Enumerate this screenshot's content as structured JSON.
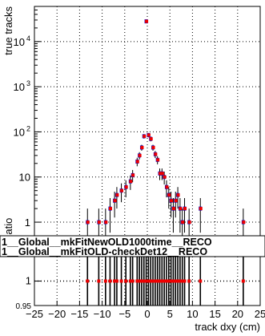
{
  "chart_data": [
    {
      "type": "scatter",
      "panel": "main",
      "ylabel": "true tracks",
      "xlabel": "",
      "ylog": true,
      "xlim": [
        -25,
        25
      ],
      "ylim": [
        0.5,
        60000
      ],
      "grid": true,
      "y_ticks": [
        {
          "v": 1,
          "label": "1"
        },
        {
          "v": 10,
          "label": "10"
        },
        {
          "v": 100,
          "label": "10",
          "sup": "2"
        },
        {
          "v": 1000,
          "label": "10",
          "sup": "3"
        },
        {
          "v": 10000,
          "label": "10",
          "sup": "4"
        }
      ],
      "series": [
        {
          "color": "#0000cc",
          "points": [
            {
              "x": -13.25,
              "y": 1
            },
            {
              "x": -10.75,
              "y": 1
            },
            {
              "x": -9.25,
              "y": 1
            },
            {
              "x": -8.25,
              "y": 2
            },
            {
              "x": -7.25,
              "y": 3
            },
            {
              "x": -6.75,
              "y": 4
            },
            {
              "x": -5.75,
              "y": 5
            },
            {
              "x": -4.75,
              "y": 6
            },
            {
              "x": -3.75,
              "y": 8
            },
            {
              "x": -3.25,
              "y": 11
            },
            {
              "x": -2.25,
              "y": 22
            },
            {
              "x": -1.75,
              "y": 30
            },
            {
              "x": -1.25,
              "y": 45
            },
            {
              "x": -0.75,
              "y": 80
            },
            {
              "x": -0.25,
              "y": 28000
            },
            {
              "x": 0.25,
              "y": 85
            },
            {
              "x": 0.75,
              "y": 70
            },
            {
              "x": 1.25,
              "y": 45
            },
            {
              "x": 1.75,
              "y": 32
            },
            {
              "x": 2.25,
              "y": 24
            },
            {
              "x": 2.75,
              "y": 12
            },
            {
              "x": 3.25,
              "y": 12
            },
            {
              "x": 3.75,
              "y": 10
            },
            {
              "x": 4.25,
              "y": 6
            },
            {
              "x": 4.75,
              "y": 4
            },
            {
              "x": 5.25,
              "y": 3
            },
            {
              "x": 5.75,
              "y": 2
            },
            {
              "x": 6.25,
              "y": 3
            },
            {
              "x": 6.75,
              "y": 4
            },
            {
              "x": 7.25,
              "y": 2
            },
            {
              "x": 7.75,
              "y": 1
            },
            {
              "x": 8.25,
              "y": 2
            },
            {
              "x": 9.25,
              "y": 1
            },
            {
              "x": 11.75,
              "y": 2
            },
            {
              "x": 21.25,
              "y": 1
            }
          ]
        },
        {
          "color": "#ee0000",
          "points": [
            {
              "x": -13.25,
              "y": 1
            },
            {
              "x": -10.75,
              "y": 1
            },
            {
              "x": -9.25,
              "y": 1
            },
            {
              "x": -8.25,
              "y": 2
            },
            {
              "x": -7.25,
              "y": 3
            },
            {
              "x": -6.75,
              "y": 4
            },
            {
              "x": -5.75,
              "y": 5
            },
            {
              "x": -4.75,
              "y": 6
            },
            {
              "x": -3.75,
              "y": 8
            },
            {
              "x": -3.25,
              "y": 11
            },
            {
              "x": -2.25,
              "y": 22
            },
            {
              "x": -1.75,
              "y": 30
            },
            {
              "x": -1.25,
              "y": 45
            },
            {
              "x": -0.75,
              "y": 80
            },
            {
              "x": -0.25,
              "y": 28000
            },
            {
              "x": 0.25,
              "y": 85
            },
            {
              "x": 0.75,
              "y": 70
            },
            {
              "x": 1.25,
              "y": 45
            },
            {
              "x": 1.75,
              "y": 32
            },
            {
              "x": 2.25,
              "y": 24
            },
            {
              "x": 2.75,
              "y": 12
            },
            {
              "x": 3.25,
              "y": 12
            },
            {
              "x": 3.75,
              "y": 10
            },
            {
              "x": 4.25,
              "y": 6
            },
            {
              "x": 4.75,
              "y": 4
            },
            {
              "x": 5.25,
              "y": 3
            },
            {
              "x": 5.75,
              "y": 2
            },
            {
              "x": 6.25,
              "y": 3
            },
            {
              "x": 6.75,
              "y": 4
            },
            {
              "x": 7.25,
              "y": 2
            },
            {
              "x": 7.75,
              "y": 1
            },
            {
              "x": 8.25,
              "y": 2
            },
            {
              "x": 9.25,
              "y": 1
            },
            {
              "x": 11.75,
              "y": 2
            },
            {
              "x": 21.25,
              "y": 1
            }
          ]
        }
      ],
      "legend": {
        "position": "bottom",
        "entries": [
          "1__Global__mkFitNewOLD1000time__RECO",
          "1__Global__mkFitOLD-checkDet12__RECO"
        ]
      }
    },
    {
      "type": "scatter",
      "panel": "ratio",
      "ylabel": "Ratio",
      "xlabel": "track dxy (cm)",
      "xlim": [
        -25,
        25
      ],
      "ylim": [
        0.95,
        1.05
      ],
      "grid": true,
      "x_ticks": [
        -25,
        -20,
        -15,
        -10,
        -5,
        0,
        5,
        10,
        15,
        20,
        25
      ],
      "y_ticks": [
        {
          "v": 0.95,
          "label": "0.95"
        },
        {
          "v": 1,
          "label": "1"
        }
      ],
      "color": "#ee0000",
      "x": [
        -13.25,
        -10.75,
        -9.25,
        -8.25,
        -7.25,
        -6.75,
        -5.75,
        -4.75,
        -3.75,
        -3.25,
        -2.25,
        -1.75,
        -1.25,
        -0.75,
        -0.25,
        0.25,
        0.75,
        1.25,
        1.75,
        2.25,
        2.75,
        3.25,
        3.75,
        4.25,
        4.75,
        5.25,
        5.75,
        6.25,
        6.75,
        7.25,
        7.75,
        8.25,
        9.25,
        11.75,
        21.25
      ],
      "values": [
        1,
        1,
        1,
        1,
        1,
        1,
        1,
        1,
        1,
        1,
        1,
        1,
        1,
        1,
        1,
        1,
        1,
        1,
        1,
        1,
        1,
        1,
        1,
        1,
        1,
        1,
        1,
        1,
        1,
        1,
        1,
        1,
        1,
        1,
        1
      ]
    }
  ]
}
